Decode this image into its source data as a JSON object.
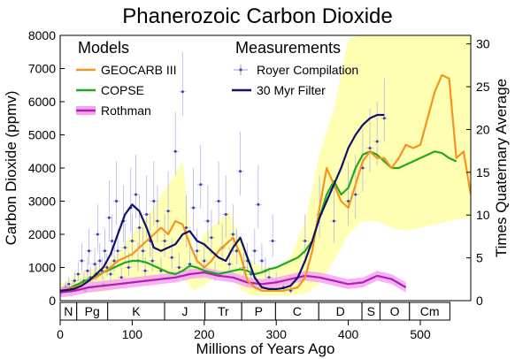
{
  "chart_data": {
    "type": "line",
    "title": "Phanerozoic Carbon Dioxide",
    "xlabel": "Millions of Years Ago",
    "ylabel": "Carbon Dioxide (ppmv)",
    "y2label": "Times Quaternary Average",
    "xlim": [
      0,
      570
    ],
    "ylim": [
      0,
      8000
    ],
    "y2lim": [
      0,
      31
    ],
    "xticks": [
      0,
      100,
      200,
      300,
      400,
      500
    ],
    "yticks": [
      0,
      1000,
      2000,
      3000,
      4000,
      5000,
      6000,
      7000,
      8000
    ],
    "y2ticks": [
      0,
      5,
      10,
      15,
      20,
      25,
      30
    ],
    "grid": false,
    "legend": {
      "models_heading": "Models",
      "measurements_heading": "Measurements",
      "placement": "top"
    },
    "periods": [
      {
        "label": "N",
        "start": 0,
        "end": 23
      },
      {
        "label": "Pg",
        "start": 23,
        "end": 66
      },
      {
        "label": "K",
        "start": 66,
        "end": 145
      },
      {
        "label": "J",
        "start": 145,
        "end": 201
      },
      {
        "label": "Tr",
        "start": 201,
        "end": 252
      },
      {
        "label": "P",
        "start": 252,
        "end": 299
      },
      {
        "label": "C",
        "start": 299,
        "end": 359
      },
      {
        "label": "D",
        "start": 359,
        "end": 419
      },
      {
        "label": "S",
        "start": 419,
        "end": 444
      },
      {
        "label": "O",
        "start": 444,
        "end": 485
      },
      {
        "label": "Cm",
        "start": 485,
        "end": 541
      }
    ],
    "geocarb_band": {
      "name": "",
      "x": [
        0,
        10,
        25,
        45,
        70,
        100,
        130,
        150,
        170,
        185,
        200,
        220,
        235,
        250,
        265,
        280,
        300,
        320,
        340,
        360,
        380,
        400,
        420,
        440,
        460,
        480,
        500,
        520,
        540,
        560,
        570
      ],
      "lower": [
        150,
        200,
        250,
        250,
        300,
        500,
        600,
        700,
        700,
        300,
        450,
        800,
        900,
        350,
        150,
        150,
        150,
        150,
        200,
        500,
        1200,
        2000,
        2400,
        2400,
        2200,
        2100,
        2200,
        2300,
        2400,
        2500,
        2500
      ],
      "upper": [
        500,
        600,
        800,
        950,
        1200,
        2000,
        2800,
        3500,
        4200,
        1300,
        2000,
        2400,
        2700,
        1800,
        1200,
        1000,
        1000,
        1300,
        2400,
        4400,
        5800,
        7900,
        8000,
        8000,
        8000,
        8000,
        8000,
        8000,
        8000,
        8000,
        8000
      ]
    },
    "series": [
      {
        "name": "GEOCARB III",
        "color": "#f7931e",
        "x": [
          0,
          10,
          20,
          30,
          40,
          50,
          60,
          70,
          80,
          90,
          100,
          110,
          120,
          130,
          140,
          150,
          160,
          170,
          180,
          190,
          200,
          210,
          220,
          230,
          240,
          250,
          260,
          270,
          280,
          290,
          300,
          310,
          320,
          330,
          340,
          350,
          360,
          370,
          380,
          390,
          400,
          410,
          420,
          430,
          440,
          450,
          460,
          470,
          480,
          490,
          500,
          510,
          520,
          530,
          540,
          550,
          560,
          570
        ],
        "values": [
          300,
          350,
          400,
          480,
          600,
          700,
          850,
          1000,
          1200,
          1300,
          1400,
          1600,
          1800,
          2000,
          2200,
          2000,
          2400,
          2300,
          1700,
          1200,
          1000,
          1200,
          1500,
          1700,
          1900,
          1400,
          600,
          400,
          300,
          300,
          300,
          300,
          350,
          400,
          700,
          1500,
          2800,
          4000,
          3500,
          3000,
          2800,
          3500,
          4200,
          4500,
          4300,
          4300,
          4000,
          4300,
          4700,
          4600,
          4700,
          5500,
          6300,
          6800,
          6700,
          4300,
          4500,
          3200
        ]
      },
      {
        "name": "COPSE",
        "color": "#1eaa1e",
        "x": [
          0,
          10,
          20,
          30,
          40,
          50,
          60,
          70,
          80,
          90,
          100,
          110,
          120,
          130,
          140,
          150,
          160,
          170,
          180,
          190,
          200,
          210,
          220,
          230,
          240,
          250,
          260,
          270,
          280,
          290,
          300,
          310,
          320,
          330,
          340,
          350,
          360,
          370,
          380,
          390,
          400,
          410,
          420,
          430,
          440,
          450,
          460,
          470,
          480,
          490,
          500,
          510,
          520,
          530,
          540,
          550
        ],
        "values": [
          300,
          350,
          450,
          550,
          650,
          750,
          850,
          950,
          1050,
          1150,
          1200,
          1200,
          1150,
          1050,
          950,
          850,
          800,
          900,
          1050,
          1000,
          900,
          850,
          800,
          850,
          900,
          950,
          900,
          800,
          850,
          950,
          1000,
          1100,
          1200,
          1300,
          1500,
          1800,
          2500,
          3200,
          3600,
          3200,
          3400,
          4000,
          4400,
          4500,
          4400,
          4200,
          4000,
          4000,
          4100,
          4200,
          4300,
          4400,
          4500,
          4450,
          4300,
          4200
        ]
      },
      {
        "name": "Rothman",
        "color": "#b01eb4",
        "x": [
          0,
          20,
          40,
          60,
          80,
          100,
          120,
          140,
          160,
          180,
          200,
          220,
          240,
          260,
          280,
          300,
          320,
          340,
          360,
          380,
          400,
          420,
          440,
          460,
          480
        ],
        "values": [
          250,
          300,
          400,
          450,
          500,
          550,
          600,
          650,
          700,
          800,
          850,
          750,
          700,
          550,
          500,
          550,
          650,
          750,
          700,
          600,
          500,
          550,
          750,
          650,
          400
        ]
      },
      {
        "name": "30 Myr Filter",
        "color": "#10106e",
        "x": [
          0,
          10,
          20,
          30,
          40,
          50,
          60,
          70,
          80,
          90,
          100,
          110,
          120,
          130,
          140,
          150,
          160,
          170,
          180,
          190,
          200,
          210,
          220,
          230,
          240,
          250,
          260,
          270,
          280,
          290,
          300,
          310,
          320,
          330,
          340,
          350,
          360,
          370,
          380,
          390,
          400,
          410,
          420,
          430,
          440,
          450
        ],
        "values": [
          300,
          320,
          360,
          450,
          600,
          800,
          1000,
          1400,
          2000,
          2600,
          2900,
          2700,
          2200,
          1600,
          1500,
          1600,
          1700,
          2000,
          2100,
          1800,
          1700,
          1500,
          1300,
          1200,
          1600,
          1900,
          1300,
          700,
          400,
          350,
          350,
          380,
          450,
          700,
          1200,
          1800,
          2500,
          3000,
          3500,
          4000,
          4600,
          5000,
          5300,
          5500,
          5600,
          5600
        ]
      }
    ],
    "measurements": {
      "name": "Royer Compilation",
      "color": "#6a6ad4",
      "x": [
        2,
        4,
        6,
        8,
        10,
        12,
        15,
        18,
        20,
        22,
        25,
        28,
        30,
        33,
        35,
        38,
        40,
        42,
        45,
        48,
        50,
        52,
        55,
        58,
        60,
        62,
        65,
        68,
        70,
        72,
        75,
        78,
        80,
        85,
        88,
        90,
        95,
        98,
        100,
        105,
        108,
        110,
        115,
        118,
        120,
        125,
        128,
        130,
        135,
        140,
        145,
        150,
        155,
        160,
        165,
        170,
        175,
        180,
        185,
        190,
        195,
        200,
        205,
        210,
        215,
        220,
        225,
        230,
        235,
        240,
        245,
        250,
        255,
        260,
        265,
        270,
        275,
        280,
        285,
        290,
        295,
        300,
        310,
        320,
        340,
        360,
        380,
        400,
        410,
        420,
        430,
        440,
        450
      ],
      "values": [
        250,
        300,
        350,
        400,
        320,
        500,
        280,
        400,
        600,
        350,
        800,
        450,
        1200,
        600,
        300,
        900,
        1500,
        700,
        400,
        1100,
        800,
        2000,
        1200,
        900,
        500,
        1500,
        1000,
        2500,
        800,
        1800,
        1200,
        3000,
        1500,
        700,
        2400,
        1600,
        1000,
        2800,
        1800,
        3200,
        1200,
        2200,
        1500,
        900,
        2600,
        1800,
        1200,
        3000,
        2400,
        900,
        1800,
        2700,
        1300,
        4500,
        1000,
        6300,
        2200,
        1100,
        2800,
        1500,
        3500,
        1200,
        2400,
        1900,
        800,
        3000,
        1600,
        2600,
        1100,
        2000,
        1500,
        3900,
        1000,
        1200,
        800,
        1500,
        2900,
        1200,
        900,
        700,
        1800,
        600,
        400,
        300,
        1800,
        2600,
        2400,
        3000,
        3200,
        4000,
        4600,
        4800,
        5500
      ]
    }
  }
}
